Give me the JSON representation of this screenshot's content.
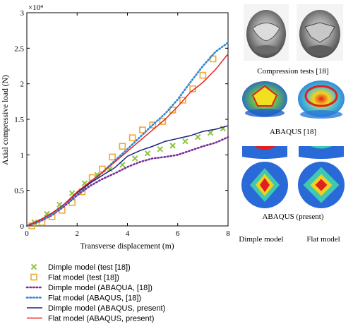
{
  "chart_data": {
    "type": "line",
    "xlabel": "Transverse displacement (m)",
    "ylabel": "Axial compressive load (N)",
    "y_multiplier_label": "×10⁴",
    "xlim": [
      0,
      8
    ],
    "ylim": [
      0,
      3
    ],
    "xticks": [
      0,
      2,
      4,
      6,
      8
    ],
    "xtick_labels": [
      "0",
      "2",
      "4",
      "6",
      "8"
    ],
    "yticks": [
      0,
      0.5,
      1,
      1.5,
      2,
      2.5,
      3
    ],
    "ytick_labels": [
      "0",
      "0.5",
      "1",
      "1.5",
      "2",
      "2.5",
      "3"
    ],
    "grid": false,
    "legend_position": "below",
    "series": [
      {
        "name": "Dimple model (test [18])",
        "style": "marker-x",
        "color": "#8cc63f",
        "x": [
          0.3,
          0.8,
          1.3,
          1.8,
          2.3,
          2.8,
          3.3,
          3.8,
          4.3,
          4.8,
          5.3,
          5.8,
          6.3,
          6.8,
          7.3,
          7.8
        ],
        "y": [
          0.05,
          0.17,
          0.3,
          0.46,
          0.6,
          0.72,
          0.8,
          0.86,
          0.95,
          1.02,
          1.08,
          1.13,
          1.19,
          1.25,
          1.31,
          1.37
        ]
      },
      {
        "name": "Flat model (test [18])",
        "style": "marker-square",
        "color": "#f0a830",
        "x": [
          0.2,
          0.6,
          1.0,
          1.4,
          1.8,
          2.2,
          2.6,
          3.0,
          3.4,
          3.8,
          4.2,
          4.6,
          5.0,
          5.4,
          5.8,
          6.2,
          6.6,
          7.0,
          7.4
        ],
        "y": [
          0.0,
          0.05,
          0.13,
          0.22,
          0.33,
          0.48,
          0.68,
          0.8,
          0.97,
          1.12,
          1.24,
          1.35,
          1.42,
          1.47,
          1.63,
          1.77,
          1.93,
          2.12,
          2.35
        ]
      },
      {
        "name": "Dimple model (ABAQUA, [18])",
        "style": "dotted",
        "color": "#7a2f9a",
        "x": [
          0,
          0.5,
          1,
          1.5,
          2,
          2.5,
          3,
          3.5,
          4,
          4.5,
          5,
          5.5,
          6,
          6.5,
          7,
          7.5,
          8
        ],
        "y": [
          0,
          0.06,
          0.15,
          0.28,
          0.43,
          0.56,
          0.66,
          0.74,
          0.83,
          0.9,
          0.95,
          0.97,
          1.0,
          1.06,
          1.12,
          1.17,
          1.25
        ]
      },
      {
        "name": "Flat model (ABAQUS, [18])",
        "style": "dotted",
        "color": "#2f86d0",
        "x": [
          0,
          0.5,
          1,
          1.5,
          2,
          2.5,
          3,
          3.5,
          4,
          4.5,
          5,
          5.5,
          6,
          6.5,
          7,
          7.5,
          8
        ],
        "y": [
          0,
          0.07,
          0.16,
          0.3,
          0.45,
          0.6,
          0.75,
          0.92,
          1.08,
          1.25,
          1.42,
          1.58,
          1.78,
          2.02,
          2.25,
          2.45,
          2.58
        ]
      },
      {
        "name": "Dimple model (ABAQUS, present)",
        "style": "solid",
        "color": "#1a237e",
        "x": [
          0,
          0.5,
          1,
          1.5,
          2,
          2.5,
          3,
          3.5,
          4,
          4.5,
          5,
          5.5,
          6,
          6.5,
          7,
          7.5,
          8
        ],
        "y": [
          0,
          0.08,
          0.18,
          0.31,
          0.47,
          0.6,
          0.71,
          0.82,
          0.98,
          1.06,
          1.12,
          1.19,
          1.23,
          1.27,
          1.33,
          1.36,
          1.41
        ]
      },
      {
        "name": "Flat model (ABAQUS, present)",
        "style": "solid",
        "color": "#e8211e",
        "x": [
          0,
          0.5,
          1,
          1.5,
          2,
          2.5,
          3,
          3.5,
          4,
          4.5,
          5,
          5.5,
          6,
          6.5,
          7,
          7.5,
          8
        ],
        "y": [
          0,
          0.08,
          0.18,
          0.31,
          0.48,
          0.62,
          0.75,
          0.9,
          1.05,
          1.2,
          1.35,
          1.5,
          1.68,
          1.88,
          2.02,
          2.2,
          2.42
        ]
      }
    ]
  },
  "side_panel": {
    "compression_caption": "Compression tests [18]",
    "abaqus_ref_caption": "ABAQUS [18]",
    "abaqus_present_caption": "ABAQUS (present)",
    "dimple_model_label": "Dimple model",
    "flat_model_label": "Flat model"
  }
}
